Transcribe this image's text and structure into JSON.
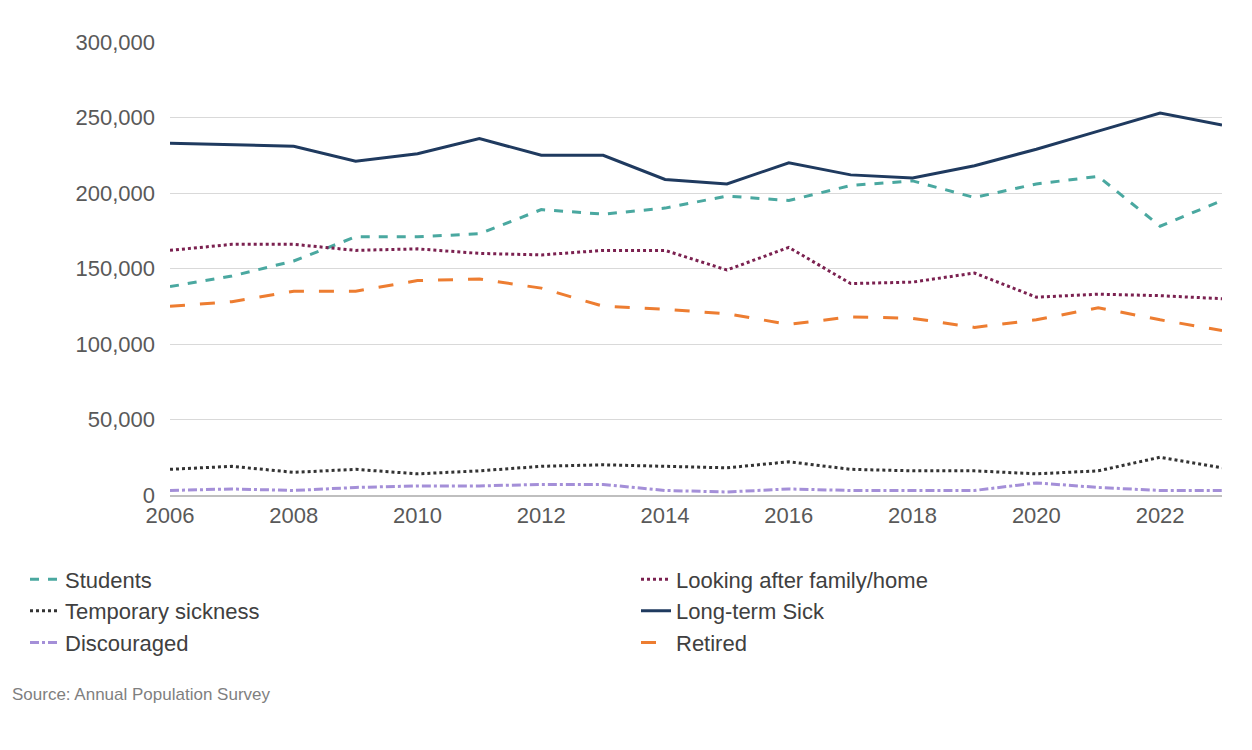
{
  "chart_data": {
    "type": "line",
    "x": [
      2006,
      2007,
      2008,
      2009,
      2010,
      2011,
      2012,
      2013,
      2014,
      2015,
      2016,
      2017,
      2018,
      2019,
      2020,
      2021,
      2022,
      2023
    ],
    "series": [
      {
        "name": "Students",
        "color": "#4aa8a0",
        "line_style": "dash",
        "values": [
          138000,
          145000,
          155000,
          171000,
          171000,
          173000,
          189000,
          186000,
          190000,
          198000,
          195000,
          205000,
          208000,
          197000,
          206000,
          211000,
          178000,
          195000
        ]
      },
      {
        "name": "Looking after family/home",
        "color": "#7b2150",
        "line_style": "dot",
        "values": [
          162000,
          166000,
          166000,
          162000,
          163000,
          160000,
          159000,
          162000,
          162000,
          149000,
          164000,
          140000,
          141000,
          147000,
          131000,
          133000,
          132000,
          130000
        ]
      },
      {
        "name": "Temporary sickness",
        "color": "#333333",
        "line_style": "dot",
        "values": [
          17000,
          19000,
          15000,
          17000,
          14000,
          16000,
          19000,
          20000,
          19000,
          18000,
          22000,
          17000,
          16000,
          16000,
          14000,
          16000,
          25000,
          18000
        ]
      },
      {
        "name": "Long-term Sick",
        "color": "#1f3a5f",
        "line_style": "solid",
        "values": [
          233000,
          232000,
          231000,
          221000,
          226000,
          236000,
          225000,
          225000,
          209000,
          206000,
          220000,
          212000,
          210000,
          218000,
          229000,
          241000,
          253000,
          245000
        ]
      },
      {
        "name": "Discouraged",
        "color": "#a48fd8",
        "line_style": "dashdot",
        "values": [
          3000,
          4000,
          3000,
          5000,
          6000,
          6000,
          7000,
          7000,
          3000,
          2000,
          4000,
          3000,
          3000,
          3000,
          8000,
          5000,
          3000,
          3000
        ]
      },
      {
        "name": "Retired",
        "color": "#ed7d31",
        "line_style": "longdash",
        "values": [
          125000,
          128000,
          135000,
          135000,
          142000,
          143000,
          137000,
          125000,
          123000,
          120000,
          113000,
          118000,
          117000,
          111000,
          116000,
          124000,
          116000,
          109000
        ]
      }
    ],
    "xlim": [
      2006,
      2023
    ],
    "xticks": [
      2006,
      2008,
      2010,
      2012,
      2014,
      2016,
      2018,
      2020,
      2022
    ],
    "ylim": [
      0,
      300000
    ],
    "yticks": [
      0,
      {
        "value": 50000,
        "label": "50,000"
      },
      {
        "value": 100000,
        "label": "100,000"
      },
      {
        "value": 150000,
        "label": "150,000"
      },
      {
        "value": 200000,
        "label": "200,000"
      },
      {
        "value": 250000,
        "label": "250,000"
      },
      {
        "value": 300000,
        "label": "300,000"
      }
    ],
    "grid": true,
    "legend": "bottom",
    "annotations": [
      "Source: Annual Population Survey"
    ]
  }
}
